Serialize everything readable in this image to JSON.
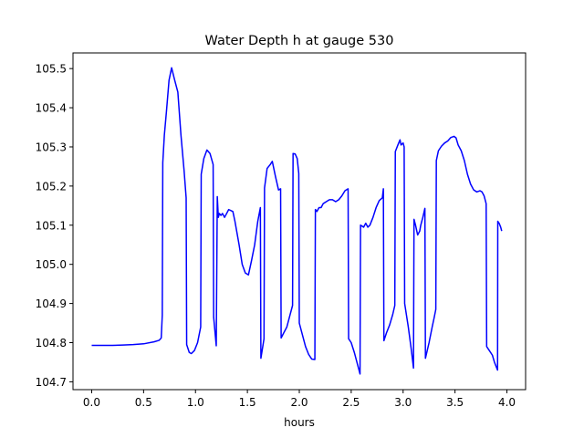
{
  "chart_data": {
    "type": "line",
    "title": "Water Depth h at gauge 530",
    "xlabel": "hours",
    "ylabel": "",
    "xlim": [
      -0.18,
      4.18
    ],
    "ylim": [
      104.68,
      105.54
    ],
    "xticks": [
      0.0,
      0.5,
      1.0,
      1.5,
      2.0,
      2.5,
      3.0,
      3.5,
      4.0
    ],
    "xtick_labels": [
      "0.0",
      "0.5",
      "1.0",
      "1.5",
      "2.0",
      "2.5",
      "3.0",
      "3.5",
      "4.0"
    ],
    "yticks": [
      104.7,
      104.8,
      104.9,
      105.0,
      105.1,
      105.2,
      105.3,
      105.4,
      105.5
    ],
    "ytick_labels": [
      "104.7",
      "104.8",
      "104.9",
      "105.0",
      "105.1",
      "105.2",
      "105.3",
      "105.4",
      "105.5"
    ],
    "grid": false,
    "series": [
      {
        "color": "#0000ff",
        "points": [
          [
            0.0,
            104.793
          ],
          [
            0.1,
            104.793
          ],
          [
            0.2,
            104.793
          ],
          [
            0.3,
            104.794
          ],
          [
            0.4,
            104.795
          ],
          [
            0.5,
            104.797
          ],
          [
            0.6,
            104.802
          ],
          [
            0.65,
            104.806
          ],
          [
            0.67,
            104.812
          ],
          [
            0.68,
            104.87
          ],
          [
            0.685,
            105.26
          ],
          [
            0.7,
            105.33
          ],
          [
            0.72,
            105.39
          ],
          [
            0.745,
            105.47
          ],
          [
            0.77,
            105.502
          ],
          [
            0.8,
            105.47
          ],
          [
            0.83,
            105.44
          ],
          [
            0.86,
            105.33
          ],
          [
            0.89,
            105.24
          ],
          [
            0.91,
            105.17
          ],
          [
            0.915,
            104.795
          ],
          [
            0.94,
            104.775
          ],
          [
            0.96,
            104.772
          ],
          [
            0.99,
            104.78
          ],
          [
            1.02,
            104.8
          ],
          [
            1.05,
            104.84
          ],
          [
            1.055,
            105.23
          ],
          [
            1.08,
            105.27
          ],
          [
            1.11,
            105.292
          ],
          [
            1.14,
            105.283
          ],
          [
            1.17,
            105.255
          ],
          [
            1.175,
            104.865
          ],
          [
            1.2,
            104.792
          ],
          [
            1.21,
            105.173
          ],
          [
            1.22,
            105.12
          ],
          [
            1.23,
            105.13
          ],
          [
            1.245,
            105.125
          ],
          [
            1.26,
            105.13
          ],
          [
            1.28,
            105.12
          ],
          [
            1.3,
            105.13
          ],
          [
            1.32,
            105.14
          ],
          [
            1.36,
            105.135
          ],
          [
            1.38,
            105.11
          ],
          [
            1.42,
            105.05
          ],
          [
            1.45,
            105.0
          ],
          [
            1.48,
            104.978
          ],
          [
            1.51,
            104.973
          ],
          [
            1.54,
            105.01
          ],
          [
            1.57,
            105.05
          ],
          [
            1.6,
            105.11
          ],
          [
            1.625,
            105.145
          ],
          [
            1.63,
            104.76
          ],
          [
            1.66,
            104.81
          ],
          [
            1.665,
            105.195
          ],
          [
            1.69,
            105.245
          ],
          [
            1.72,
            105.255
          ],
          [
            1.74,
            105.263
          ],
          [
            1.77,
            105.225
          ],
          [
            1.8,
            105.19
          ],
          [
            1.82,
            105.193
          ],
          [
            1.825,
            104.812
          ],
          [
            1.85,
            104.825
          ],
          [
            1.88,
            104.84
          ],
          [
            1.91,
            104.87
          ],
          [
            1.935,
            104.895
          ],
          [
            1.94,
            105.283
          ],
          [
            1.96,
            105.282
          ],
          [
            1.98,
            105.27
          ],
          [
            1.995,
            105.232
          ],
          [
            2.0,
            104.85
          ],
          [
            2.03,
            104.82
          ],
          [
            2.06,
            104.79
          ],
          [
            2.09,
            104.77
          ],
          [
            2.12,
            104.758
          ],
          [
            2.15,
            104.757
          ],
          [
            2.155,
            105.14
          ],
          [
            2.17,
            105.135
          ],
          [
            2.19,
            105.145
          ],
          [
            2.21,
            105.145
          ],
          [
            2.23,
            105.155
          ],
          [
            2.26,
            105.16
          ],
          [
            2.29,
            105.165
          ],
          [
            2.32,
            105.165
          ],
          [
            2.35,
            105.16
          ],
          [
            2.38,
            105.165
          ],
          [
            2.41,
            105.175
          ],
          [
            2.44,
            105.188
          ],
          [
            2.47,
            105.193
          ],
          [
            2.475,
            104.81
          ],
          [
            2.5,
            104.8
          ],
          [
            2.53,
            104.775
          ],
          [
            2.56,
            104.745
          ],
          [
            2.585,
            104.72
          ],
          [
            2.59,
            105.1
          ],
          [
            2.62,
            105.095
          ],
          [
            2.64,
            105.105
          ],
          [
            2.66,
            105.095
          ],
          [
            2.68,
            105.1
          ],
          [
            2.71,
            105.12
          ],
          [
            2.74,
            105.145
          ],
          [
            2.77,
            105.163
          ],
          [
            2.8,
            105.17
          ],
          [
            2.81,
            105.193
          ],
          [
            2.815,
            104.805
          ],
          [
            2.84,
            104.825
          ],
          [
            2.87,
            104.845
          ],
          [
            2.9,
            104.872
          ],
          [
            2.92,
            104.895
          ],
          [
            2.925,
            105.288
          ],
          [
            2.95,
            105.305
          ],
          [
            2.97,
            105.318
          ],
          [
            2.98,
            105.305
          ],
          [
            3.0,
            105.31
          ],
          [
            3.01,
            105.3
          ],
          [
            3.015,
            104.9
          ],
          [
            3.05,
            104.84
          ],
          [
            3.08,
            104.78
          ],
          [
            3.1,
            104.735
          ],
          [
            3.105,
            105.115
          ],
          [
            3.12,
            105.1
          ],
          [
            3.14,
            105.075
          ],
          [
            3.16,
            105.085
          ],
          [
            3.17,
            105.1
          ],
          [
            3.19,
            105.12
          ],
          [
            3.21,
            105.143
          ],
          [
            3.215,
            104.76
          ],
          [
            3.25,
            104.8
          ],
          [
            3.28,
            104.84
          ],
          [
            3.3,
            104.865
          ],
          [
            3.315,
            104.885
          ],
          [
            3.32,
            105.265
          ],
          [
            3.34,
            105.29
          ],
          [
            3.37,
            105.302
          ],
          [
            3.4,
            105.31
          ],
          [
            3.43,
            105.315
          ],
          [
            3.46,
            105.324
          ],
          [
            3.49,
            105.327
          ],
          [
            3.51,
            105.323
          ],
          [
            3.53,
            105.305
          ],
          [
            3.56,
            105.29
          ],
          [
            3.59,
            105.265
          ],
          [
            3.62,
            105.23
          ],
          [
            3.65,
            105.205
          ],
          [
            3.68,
            105.19
          ],
          [
            3.71,
            105.185
          ],
          [
            3.74,
            105.188
          ],
          [
            3.76,
            105.185
          ],
          [
            3.78,
            105.175
          ],
          [
            3.8,
            105.155
          ],
          [
            3.805,
            104.79
          ],
          [
            3.83,
            104.78
          ],
          [
            3.86,
            104.768
          ],
          [
            3.88,
            104.75
          ],
          [
            3.91,
            104.73
          ],
          [
            3.912,
            105.11
          ],
          [
            3.925,
            105.105
          ],
          [
            3.94,
            105.095
          ],
          [
            3.95,
            105.085
          ]
        ]
      }
    ]
  }
}
